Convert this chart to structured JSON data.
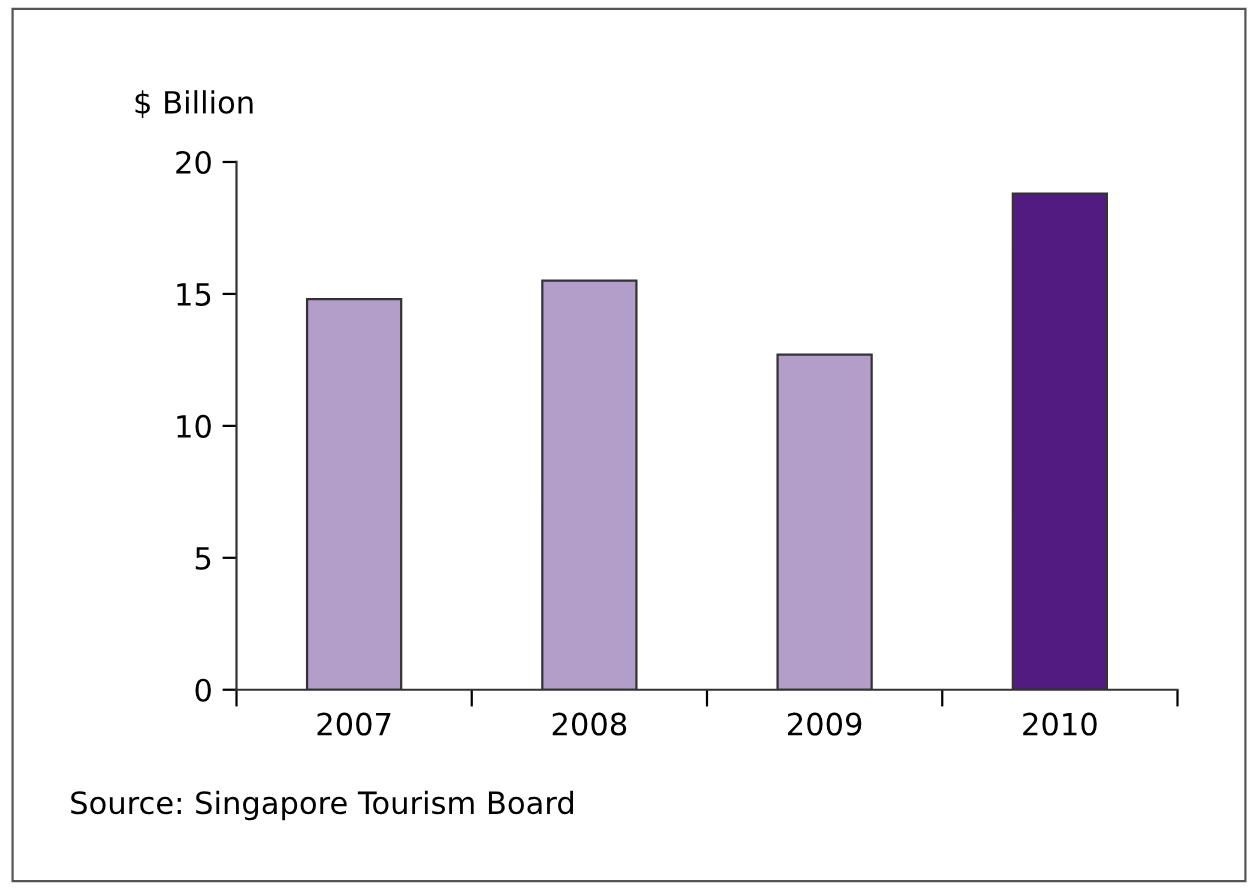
{
  "chart_data": {
    "type": "bar",
    "ylabel": "$ Billion",
    "categories": [
      "2007",
      "2008",
      "2009",
      "2010"
    ],
    "values": [
      14.8,
      15.5,
      12.7,
      18.8
    ],
    "colors": [
      "#b39dc9",
      "#b39dc9",
      "#b39dc9",
      "#521b82"
    ],
    "ylim": [
      0,
      20
    ],
    "yticks": [
      0,
      5,
      10,
      15,
      20
    ],
    "grid": false,
    "legend": false,
    "annotations": [
      "Source: Singapore Tourism Board"
    ]
  }
}
